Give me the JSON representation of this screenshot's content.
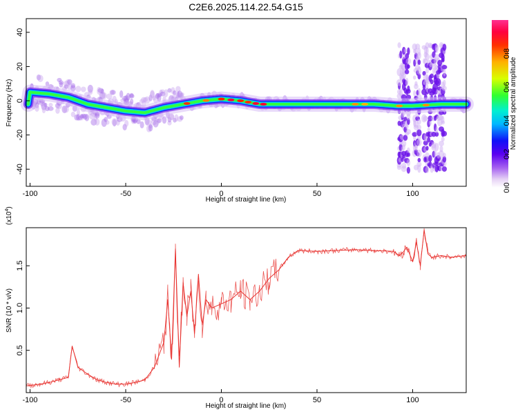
{
  "title": "C2E6.2025.114.22.54.G15",
  "chart_data": [
    {
      "type": "heatmap",
      "xlabel": "Height of straight line (km)",
      "ylabel": "Frequency (Hz)",
      "xlim": [
        -102,
        128
      ],
      "ylim": [
        -50,
        48
      ],
      "xticks": [
        "-100",
        "-50",
        "0",
        "50",
        "100"
      ],
      "yticks": [
        "40",
        "20",
        "0",
        "-20",
        "-40"
      ],
      "colorbar": {
        "label": "Normalized spectral amplitude",
        "range": [
          0,
          1
        ],
        "ticks": [
          "0.0",
          "0.2",
          "0.4",
          "0.6",
          "0.8"
        ]
      },
      "ridge": [
        {
          "x": -100,
          "f": 5
        },
        {
          "x": -90,
          "f": 4
        },
        {
          "x": -80,
          "f": 2
        },
        {
          "x": -70,
          "f": -2
        },
        {
          "x": -60,
          "f": -4
        },
        {
          "x": -50,
          "f": -6
        },
        {
          "x": -40,
          "f": -7
        },
        {
          "x": -30,
          "f": -4
        },
        {
          "x": -20,
          "f": -2
        },
        {
          "x": -10,
          "f": 0
        },
        {
          "x": 0,
          "f": 1
        },
        {
          "x": 10,
          "f": 0
        },
        {
          "x": 20,
          "f": -2
        },
        {
          "x": 50,
          "f": -2
        },
        {
          "x": 80,
          "f": -2
        },
        {
          "x": 92,
          "f": -3
        },
        {
          "x": 100,
          "f": -3
        },
        {
          "x": 115,
          "f": -2
        },
        {
          "x": 128,
          "f": -2
        }
      ],
      "grid": false
    },
    {
      "type": "line",
      "xlabel": "Height of straight line (km)",
      "ylabel": "SNR (10 * v/v)",
      "scale_label": "(x10",
      "scale_exp": "4",
      "xlim": [
        -102,
        128
      ],
      "ylim": [
        0,
        1.95
      ],
      "xticks": [
        "-100",
        "-50",
        "0",
        "50",
        "100"
      ],
      "yticks": [
        "1.5",
        "1.0",
        "0.5"
      ],
      "series": [
        {
          "color": "#e8322f",
          "x": [
            -102,
            -95,
            -90,
            -85,
            -80,
            -78,
            -75,
            -70,
            -65,
            -60,
            -55,
            -50,
            -45,
            -40,
            -35,
            -30,
            -28,
            -26,
            -24,
            -22,
            -20,
            -18,
            -16,
            -14,
            -12,
            -10,
            -8,
            -5,
            0,
            5,
            10,
            15,
            20,
            25,
            30,
            35,
            40,
            50,
            60,
            70,
            80,
            90,
            93,
            95,
            97,
            100,
            102,
            104,
            106,
            108,
            110,
            115,
            120,
            128
          ],
          "y": [
            0.08,
            0.1,
            0.12,
            0.15,
            0.18,
            0.55,
            0.3,
            0.22,
            0.15,
            0.12,
            0.1,
            0.1,
            0.12,
            0.15,
            0.3,
            0.6,
            1.1,
            0.4,
            1.7,
            0.3,
            1.3,
            0.9,
            1.2,
            0.7,
            1.4,
            0.8,
            1.1,
            1.0,
            1.05,
            1.1,
            1.2,
            1.1,
            1.2,
            1.35,
            1.45,
            1.6,
            1.68,
            1.67,
            1.68,
            1.69,
            1.68,
            1.67,
            1.62,
            1.66,
            1.72,
            1.55,
            1.78,
            1.5,
            1.92,
            1.64,
            1.6,
            1.62,
            1.6,
            1.62
          ]
        }
      ]
    }
  ]
}
